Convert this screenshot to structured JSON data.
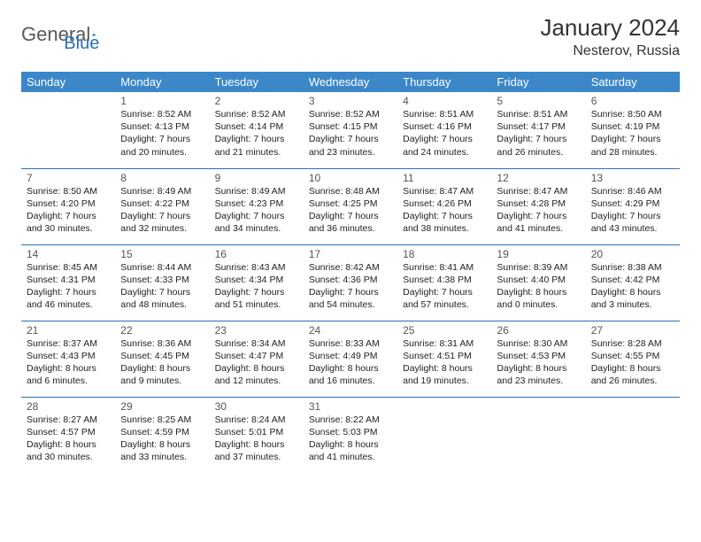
{
  "brand": {
    "part1": "General",
    "part2": "Blue"
  },
  "title": "January 2024",
  "location": "Nesterov, Russia",
  "colors": {
    "header_bg": "#3b87c8",
    "header_text": "#ffffff",
    "rule": "#2a6fb5",
    "text": "#222222",
    "daynum": "#555555",
    "brand_gray": "#5a5a5a",
    "brand_blue": "#2a6fb5",
    "background": "#ffffff"
  },
  "typography": {
    "title_fontsize": 26,
    "location_fontsize": 16,
    "header_fontsize": 13,
    "cell_fontsize": 10.5,
    "daynum_fontsize": 12
  },
  "weekdays": [
    "Sunday",
    "Monday",
    "Tuesday",
    "Wednesday",
    "Thursday",
    "Friday",
    "Saturday"
  ],
  "first_weekday_index": 1,
  "days": [
    {
      "n": 1,
      "sunrise": "8:52 AM",
      "sunset": "4:13 PM",
      "daylight": "7 hours and 20 minutes."
    },
    {
      "n": 2,
      "sunrise": "8:52 AM",
      "sunset": "4:14 PM",
      "daylight": "7 hours and 21 minutes."
    },
    {
      "n": 3,
      "sunrise": "8:52 AM",
      "sunset": "4:15 PM",
      "daylight": "7 hours and 23 minutes."
    },
    {
      "n": 4,
      "sunrise": "8:51 AM",
      "sunset": "4:16 PM",
      "daylight": "7 hours and 24 minutes."
    },
    {
      "n": 5,
      "sunrise": "8:51 AM",
      "sunset": "4:17 PM",
      "daylight": "7 hours and 26 minutes."
    },
    {
      "n": 6,
      "sunrise": "8:50 AM",
      "sunset": "4:19 PM",
      "daylight": "7 hours and 28 minutes."
    },
    {
      "n": 7,
      "sunrise": "8:50 AM",
      "sunset": "4:20 PM",
      "daylight": "7 hours and 30 minutes."
    },
    {
      "n": 8,
      "sunrise": "8:49 AM",
      "sunset": "4:22 PM",
      "daylight": "7 hours and 32 minutes."
    },
    {
      "n": 9,
      "sunrise": "8:49 AM",
      "sunset": "4:23 PM",
      "daylight": "7 hours and 34 minutes."
    },
    {
      "n": 10,
      "sunrise": "8:48 AM",
      "sunset": "4:25 PM",
      "daylight": "7 hours and 36 minutes."
    },
    {
      "n": 11,
      "sunrise": "8:47 AM",
      "sunset": "4:26 PM",
      "daylight": "7 hours and 38 minutes."
    },
    {
      "n": 12,
      "sunrise": "8:47 AM",
      "sunset": "4:28 PM",
      "daylight": "7 hours and 41 minutes."
    },
    {
      "n": 13,
      "sunrise": "8:46 AM",
      "sunset": "4:29 PM",
      "daylight": "7 hours and 43 minutes."
    },
    {
      "n": 14,
      "sunrise": "8:45 AM",
      "sunset": "4:31 PM",
      "daylight": "7 hours and 46 minutes."
    },
    {
      "n": 15,
      "sunrise": "8:44 AM",
      "sunset": "4:33 PM",
      "daylight": "7 hours and 48 minutes."
    },
    {
      "n": 16,
      "sunrise": "8:43 AM",
      "sunset": "4:34 PM",
      "daylight": "7 hours and 51 minutes."
    },
    {
      "n": 17,
      "sunrise": "8:42 AM",
      "sunset": "4:36 PM",
      "daylight": "7 hours and 54 minutes."
    },
    {
      "n": 18,
      "sunrise": "8:41 AM",
      "sunset": "4:38 PM",
      "daylight": "7 hours and 57 minutes."
    },
    {
      "n": 19,
      "sunrise": "8:39 AM",
      "sunset": "4:40 PM",
      "daylight": "8 hours and 0 minutes."
    },
    {
      "n": 20,
      "sunrise": "8:38 AM",
      "sunset": "4:42 PM",
      "daylight": "8 hours and 3 minutes."
    },
    {
      "n": 21,
      "sunrise": "8:37 AM",
      "sunset": "4:43 PM",
      "daylight": "8 hours and 6 minutes."
    },
    {
      "n": 22,
      "sunrise": "8:36 AM",
      "sunset": "4:45 PM",
      "daylight": "8 hours and 9 minutes."
    },
    {
      "n": 23,
      "sunrise": "8:34 AM",
      "sunset": "4:47 PM",
      "daylight": "8 hours and 12 minutes."
    },
    {
      "n": 24,
      "sunrise": "8:33 AM",
      "sunset": "4:49 PM",
      "daylight": "8 hours and 16 minutes."
    },
    {
      "n": 25,
      "sunrise": "8:31 AM",
      "sunset": "4:51 PM",
      "daylight": "8 hours and 19 minutes."
    },
    {
      "n": 26,
      "sunrise": "8:30 AM",
      "sunset": "4:53 PM",
      "daylight": "8 hours and 23 minutes."
    },
    {
      "n": 27,
      "sunrise": "8:28 AM",
      "sunset": "4:55 PM",
      "daylight": "8 hours and 26 minutes."
    },
    {
      "n": 28,
      "sunrise": "8:27 AM",
      "sunset": "4:57 PM",
      "daylight": "8 hours and 30 minutes."
    },
    {
      "n": 29,
      "sunrise": "8:25 AM",
      "sunset": "4:59 PM",
      "daylight": "8 hours and 33 minutes."
    },
    {
      "n": 30,
      "sunrise": "8:24 AM",
      "sunset": "5:01 PM",
      "daylight": "8 hours and 37 minutes."
    },
    {
      "n": 31,
      "sunrise": "8:22 AM",
      "sunset": "5:03 PM",
      "daylight": "8 hours and 41 minutes."
    }
  ],
  "labels": {
    "sunrise": "Sunrise:",
    "sunset": "Sunset:",
    "daylight": "Daylight:"
  }
}
